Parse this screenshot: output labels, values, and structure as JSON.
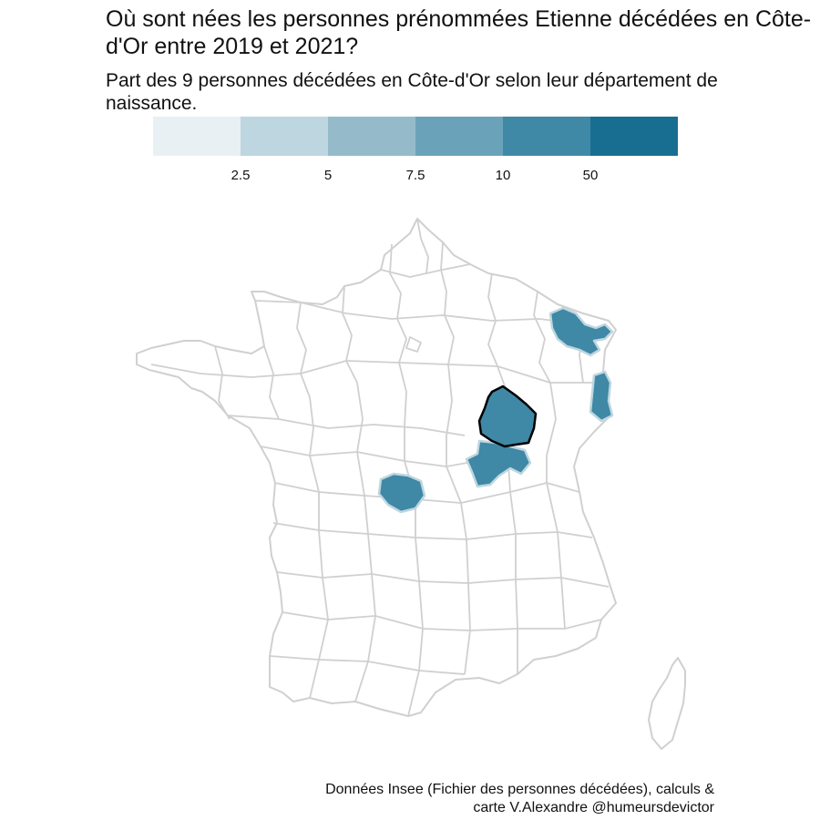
{
  "title": "Où sont nées les personnes prénommées Etienne décédées en Côte-d'Or entre 2019 et 2021?",
  "subtitle": "Part des 9 personnes décédées en Côte-d'Or selon leur département de naissance.",
  "legend": {
    "colors": [
      "#e8f0f3",
      "#bed6df",
      "#95bbca",
      "#6aa3b9",
      "#3f88a6",
      "#186e91"
    ],
    "breaks": [
      "2.5",
      "5",
      "7.5",
      "10",
      "50"
    ]
  },
  "map": {
    "region": "France métropolitaine",
    "highlighted_department": "Côte-d'Or",
    "colors": {
      "border": "#d0d0d0",
      "fill": "#ffffff",
      "highlight_outline": "#000000"
    },
    "departments_with_births": [
      {
        "name": "Côte-d'Or",
        "bin": "10 – 50"
      },
      {
        "name": "Saône-et-Loire",
        "bin": "10 – 50"
      },
      {
        "name": "Allier",
        "bin": "10 – 50"
      },
      {
        "name": "Moselle",
        "bin": "10 – 50"
      },
      {
        "name": "Vosges",
        "bin": "10 – 50"
      }
    ]
  },
  "caption_lines": [
    "Données Insee (Fichier des personnes décédées), calculs &",
    "carte V.Alexandre @humeursdevictor"
  ]
}
